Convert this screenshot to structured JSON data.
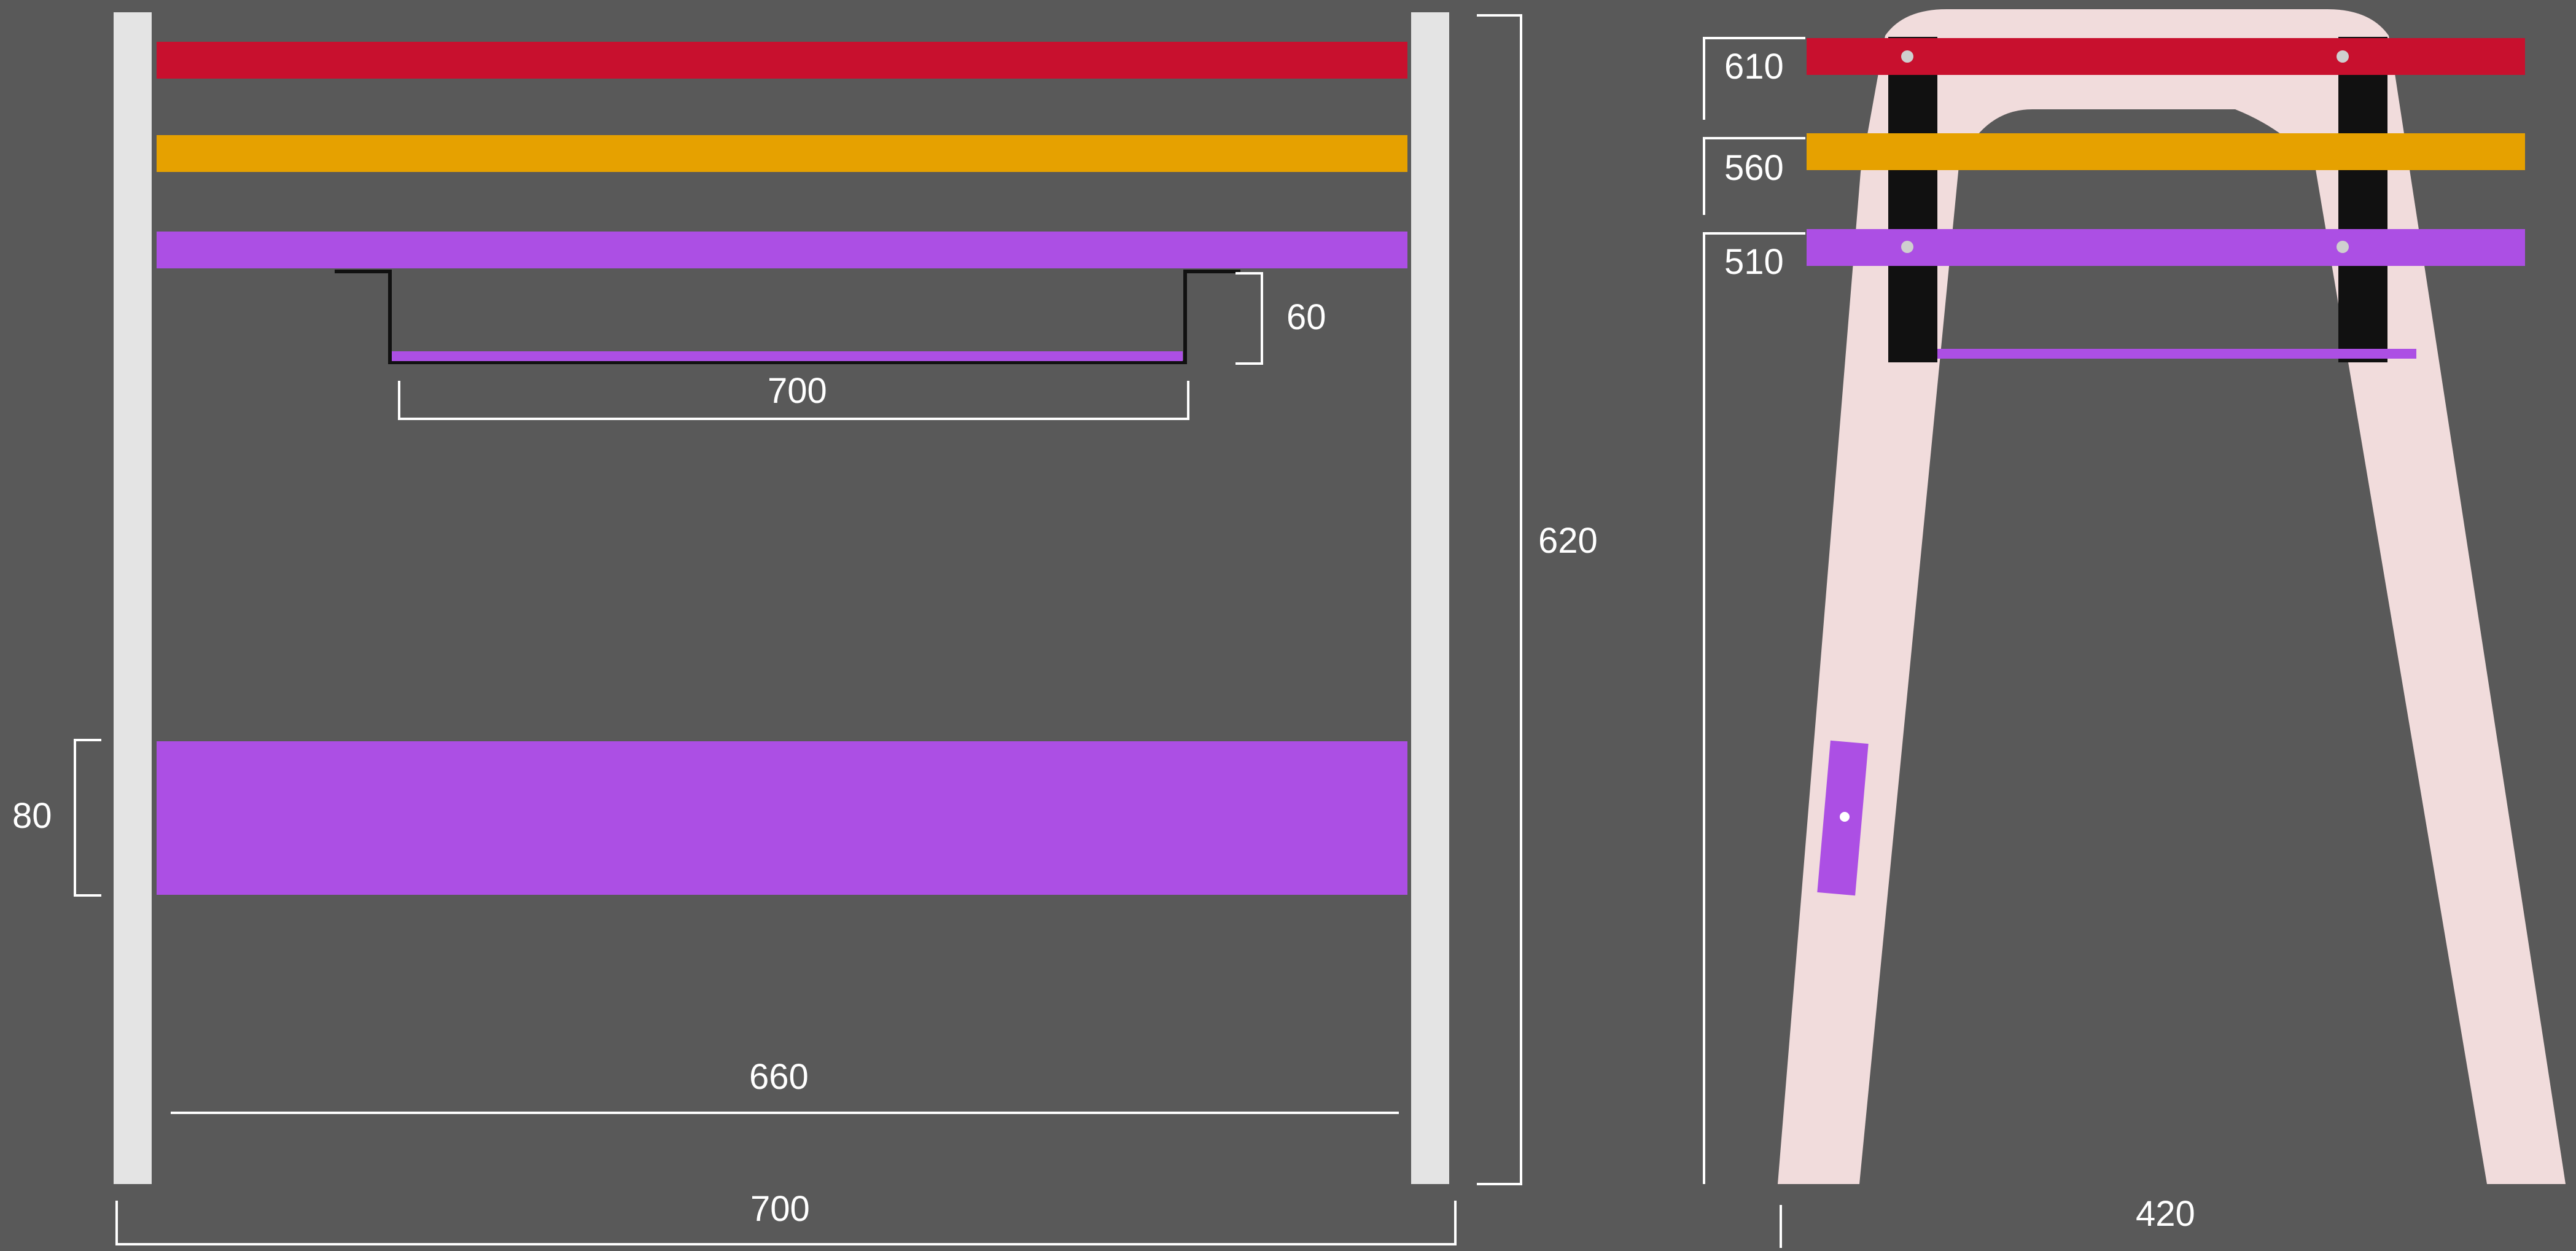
{
  "diagram": {
    "front_view": {
      "dimensions": {
        "clamp_height": "60",
        "clamp_width": "700",
        "lower_board_height": "80",
        "inner_width": "660",
        "outer_width": "700",
        "total_height": "620"
      },
      "colors": {
        "top_rail": "#c8102e",
        "middle_rail": "#e6a100",
        "lower_rail": "#ac4fe4",
        "lower_board": "#ac4fe4",
        "posts": "#e4e4e4",
        "dimension_lines": "#ffffff",
        "background": "#595959"
      }
    },
    "side_view": {
      "dimensions": {
        "top_rail_height": "610",
        "middle_rail_height": "560",
        "lower_rail_height": "510",
        "base_width": "420"
      },
      "colors": {
        "frame": "#f1dcdc",
        "top_rail": "#c8102e",
        "middle_rail": "#e6a100",
        "lower_rail": "#ac4fe4",
        "brackets": "#111111"
      }
    }
  }
}
